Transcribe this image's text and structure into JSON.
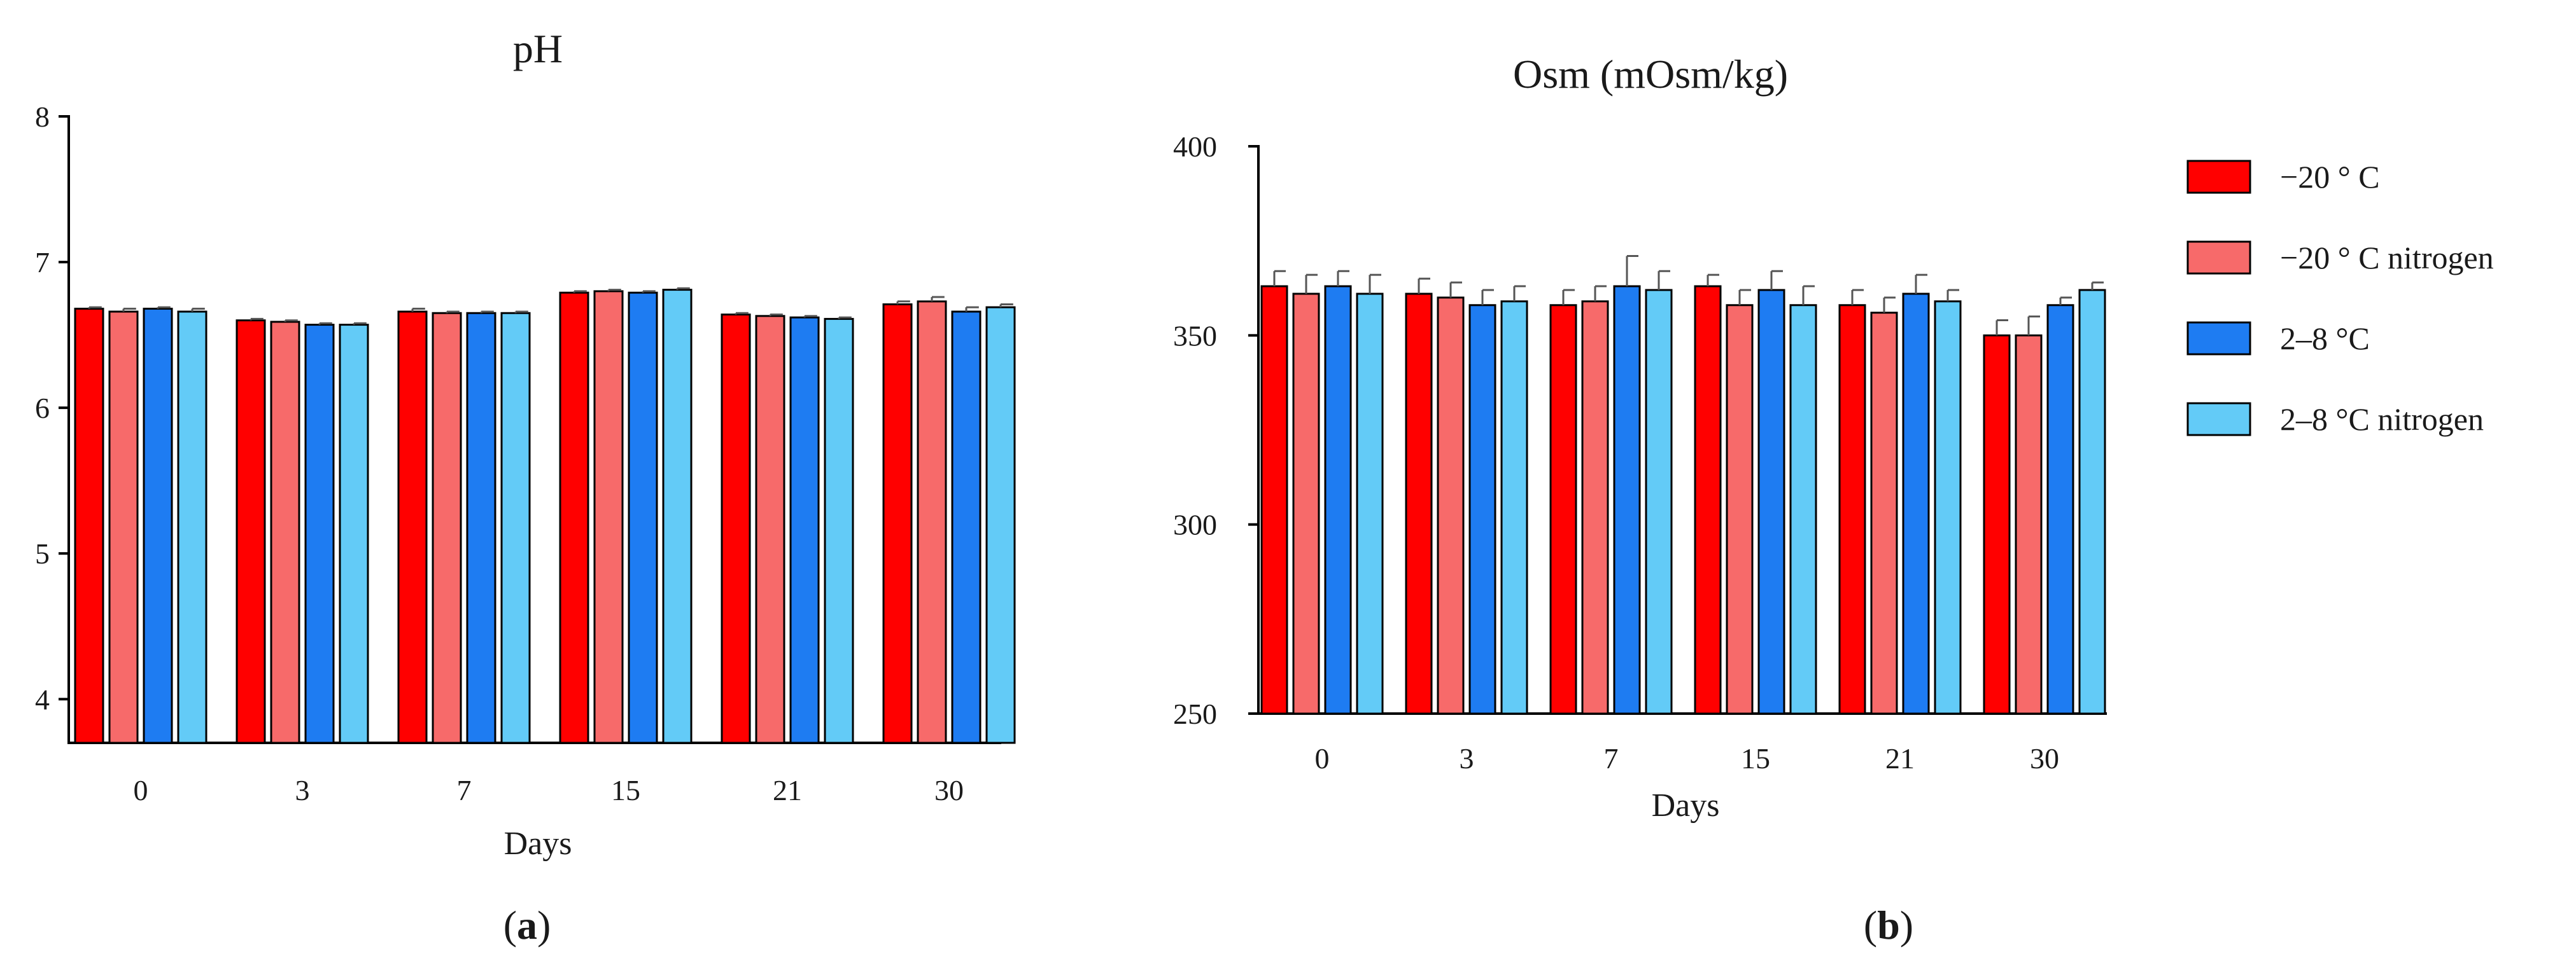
{
  "colors": {
    "minus20": "#FF0000",
    "minus20_nitrogen": "#F76A6A",
    "c2_8": "#1E7CF2",
    "c2_8_nitrogen": "#63CBF7",
    "axis": "#000000",
    "errorbar": "#555555"
  },
  "legend": {
    "entries": [
      "−20 ° C",
      "−20 ° C nitrogen",
      "2–8 °C",
      "2–8 °C nitrogen"
    ]
  },
  "panel_labels": {
    "a_paren_open": "(",
    "a_letter": "a",
    "a_paren_close": ")",
    "b_paren_open": "(",
    "b_letter": "b",
    "b_paren_close": ")"
  },
  "chart_data": [
    {
      "id": "a",
      "type": "bar",
      "title": "pH",
      "xlabel": "Days",
      "ylabel": "",
      "ylim": [
        3.7,
        8
      ],
      "yticks": [
        4,
        5,
        6,
        7,
        8
      ],
      "categories": [
        "0",
        "3",
        "7",
        "15",
        "21",
        "30"
      ],
      "series": [
        {
          "name": "−20 ° C",
          "color_key": "minus20",
          "values": [
            6.68,
            6.6,
            6.66,
            6.79,
            6.64,
            6.71
          ],
          "errors": [
            0.01,
            0.01,
            0.02,
            0.01,
            0.01,
            0.02
          ]
        },
        {
          "name": "−20 ° C nitrogen",
          "color_key": "minus20_nitrogen",
          "values": [
            6.66,
            6.59,
            6.65,
            6.8,
            6.63,
            6.73
          ],
          "errors": [
            0.02,
            0.01,
            0.01,
            0.01,
            0.01,
            0.03
          ]
        },
        {
          "name": "2–8 °C",
          "color_key": "c2_8",
          "values": [
            6.68,
            6.57,
            6.65,
            6.79,
            6.62,
            6.66
          ],
          "errors": [
            0.01,
            0.01,
            0.01,
            0.01,
            0.01,
            0.03
          ]
        },
        {
          "name": "2–8 °C nitrogen",
          "color_key": "c2_8_nitrogen",
          "values": [
            6.66,
            6.57,
            6.65,
            6.81,
            6.61,
            6.69
          ],
          "errors": [
            0.02,
            0.01,
            0.01,
            0.01,
            0.01,
            0.02
          ]
        }
      ]
    },
    {
      "id": "b",
      "type": "bar",
      "title": "Osm (mOsm/kg)",
      "xlabel": "Days",
      "ylabel": "",
      "ylim": [
        250,
        400
      ],
      "yticks": [
        250,
        300,
        350,
        400
      ],
      "categories": [
        "0",
        "3",
        "7",
        "15",
        "21",
        "30"
      ],
      "series": [
        {
          "name": "−20 ° C",
          "color_key": "minus20",
          "values": [
            363,
            361,
            358,
            363,
            358,
            350
          ],
          "errors": [
            4,
            4,
            4,
            3,
            4,
            4
          ]
        },
        {
          "name": "−20 ° C nitrogen",
          "color_key": "minus20_nitrogen",
          "values": [
            361,
            360,
            359,
            358,
            356,
            350
          ],
          "errors": [
            5,
            4,
            4,
            4,
            4,
            5
          ]
        },
        {
          "name": "2–8 °C",
          "color_key": "c2_8",
          "values": [
            363,
            358,
            363,
            362,
            361,
            358
          ],
          "errors": [
            4,
            4,
            8,
            5,
            5,
            2
          ]
        },
        {
          "name": "2–8 °C nitrogen",
          "color_key": "c2_8_nitrogen",
          "values": [
            361,
            359,
            362,
            358,
            359,
            362
          ],
          "errors": [
            5,
            4,
            5,
            5,
            3,
            2
          ]
        }
      ]
    }
  ]
}
